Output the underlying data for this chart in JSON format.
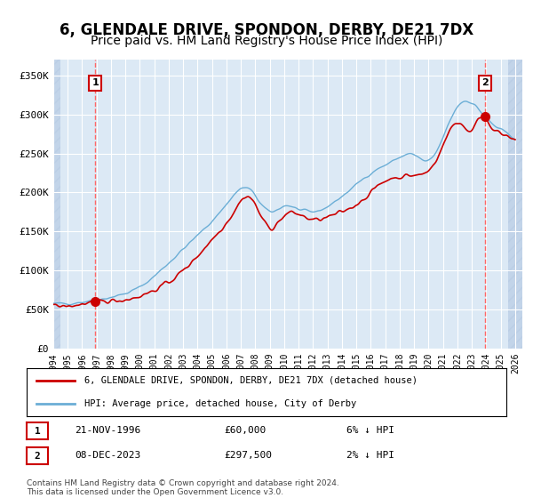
{
  "title": "6, GLENDALE DRIVE, SPONDON, DERBY, DE21 7DX",
  "subtitle": "Price paid vs. HM Land Registry's House Price Index (HPI)",
  "xlim": [
    1994.0,
    2026.5
  ],
  "ylim": [
    0,
    370000
  ],
  "yticks": [
    0,
    50000,
    100000,
    150000,
    200000,
    250000,
    300000,
    350000
  ],
  "ytick_labels": [
    "£0",
    "£50K",
    "£100K",
    "£150K",
    "£200K",
    "£250K",
    "£300K",
    "£350K"
  ],
  "xticks": [
    1994,
    1995,
    1996,
    1997,
    1998,
    1999,
    2000,
    2001,
    2002,
    2003,
    2004,
    2005,
    2006,
    2007,
    2008,
    2009,
    2010,
    2011,
    2012,
    2013,
    2014,
    2015,
    2016,
    2017,
    2018,
    2019,
    2020,
    2021,
    2022,
    2023,
    2024,
    2025,
    2026
  ],
  "hpi_color": "#6baed6",
  "price_color": "#cc0000",
  "dashed_line_color": "#ff6666",
  "point1_year": 1996.9,
  "point1_value": 60000,
  "point2_year": 2023.92,
  "point2_value": 297500,
  "legend_label1": "6, GLENDALE DRIVE, SPONDON, DERBY, DE21 7DX (detached house)",
  "legend_label2": "HPI: Average price, detached house, City of Derby",
  "annotation1_label": "1",
  "annotation2_label": "2",
  "note1_index": "1",
  "note1_date": "21-NOV-1996",
  "note1_price": "£60,000",
  "note1_hpi": "6% ↓ HPI",
  "note2_index": "2",
  "note2_date": "08-DEC-2023",
  "note2_price": "£297,500",
  "note2_hpi": "2% ↓ HPI",
  "footer": "Contains HM Land Registry data © Crown copyright and database right 2024.\nThis data is licensed under the Open Government Licence v3.0.",
  "bg_color": "#dce9f5",
  "plot_bg": "#dce9f5",
  "hatch_color": "#b0c4de",
  "title_fontsize": 12,
  "subtitle_fontsize": 10
}
